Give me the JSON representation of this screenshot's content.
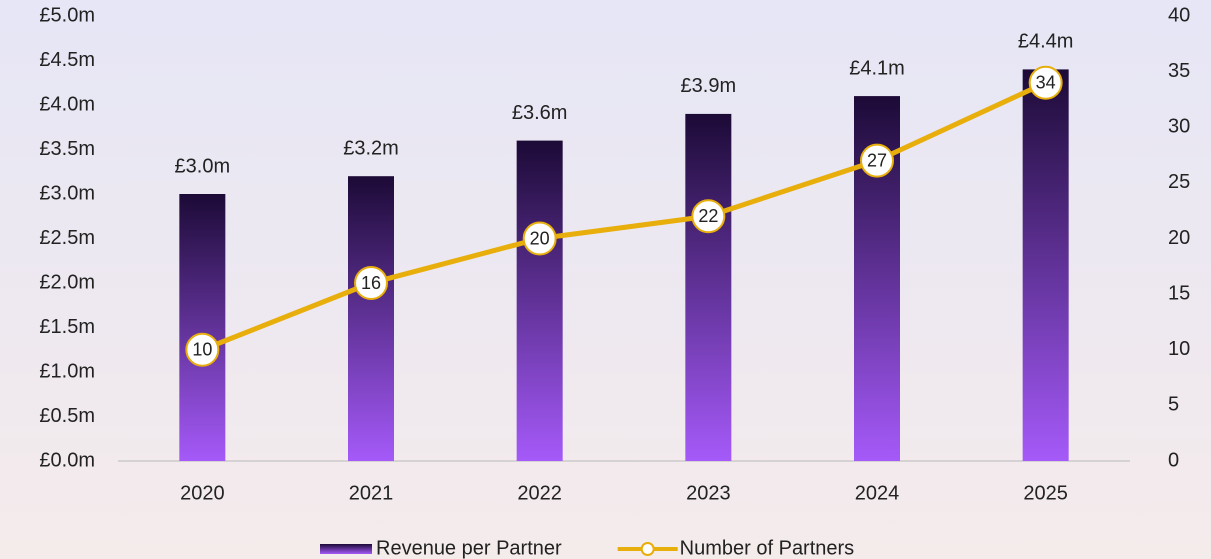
{
  "chart_data": {
    "type": "bar",
    "categories": [
      "2020",
      "2021",
      "2022",
      "2023",
      "2024",
      "2025"
    ],
    "series": [
      {
        "name": "Revenue per Partner",
        "type": "bar",
        "color": [
          "#1c0a36",
          "#a55af9"
        ],
        "values": [
          3.0,
          3.2,
          3.6,
          3.9,
          4.1,
          4.4
        ],
        "value_labels": [
          "£3.0m",
          "£3.2m",
          "£3.6m",
          "£3.9m",
          "£4.1m",
          "£4.4m"
        ]
      },
      {
        "name": "Number of Partners",
        "type": "line",
        "axis": "y2",
        "color": "#e8ae0c",
        "values": [
          10,
          16,
          20,
          22,
          27,
          34
        ]
      }
    ],
    "ylim": [
      0,
      5
    ],
    "yticks": [
      {
        "value": 0,
        "label": "£0.0m"
      },
      {
        "value": 0.5,
        "label": "£0.5m"
      },
      {
        "value": 1.0,
        "label": "£1.0m"
      },
      {
        "value": 1.5,
        "label": "£1.5m"
      },
      {
        "value": 2.0,
        "label": "£2.0m"
      },
      {
        "value": 2.5,
        "label": "£2.5m"
      },
      {
        "value": 3.0,
        "label": "£3.0m"
      },
      {
        "value": 3.5,
        "label": "£3.5m"
      },
      {
        "value": 4.0,
        "label": "£4.0m"
      },
      {
        "value": 4.5,
        "label": "£4.5m"
      },
      {
        "value": 5.0,
        "label": "£5.0m"
      }
    ],
    "y2lim": [
      0,
      40
    ],
    "y2ticks": [
      0,
      5,
      10,
      15,
      20,
      25,
      30,
      35,
      40
    ],
    "grid": false,
    "legend": "bottom"
  }
}
